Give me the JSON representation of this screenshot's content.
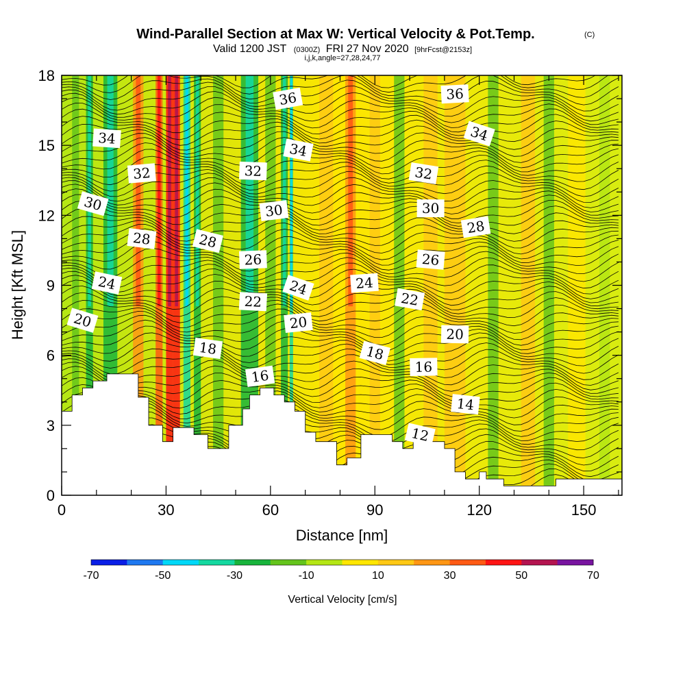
{
  "header": {
    "title": "Wind-Parallel Section at Max W: Vertical Velocity & Pot.Temp.",
    "copyright": "(C)",
    "valid_prefix": "Valid 1200 JST",
    "utc": "(0300Z)",
    "date": "FRI 27 Nov 2020",
    "forecast": "[9hrFcst@2153z]",
    "indices": "i,j,k,angle=27,28,24,77"
  },
  "chart_data": {
    "type": "heatmap",
    "xlabel": "Distance [nm]",
    "ylabel": "Height [Kft MSL]",
    "xlim": [
      0,
      161
    ],
    "ylim": [
      0,
      18
    ],
    "x_ticks": [
      0,
      30,
      60,
      90,
      120,
      150
    ],
    "y_ticks": [
      0,
      3,
      6,
      9,
      12,
      15,
      18
    ],
    "colorbar": {
      "label": "Vertical Velocity [cm/s]",
      "min": -70,
      "max": 70,
      "step": 10,
      "tick_values": [
        -70,
        -50,
        -30,
        -10,
        10,
        30,
        50,
        70
      ],
      "colors": [
        "#0a1ee6",
        "#1e78f0",
        "#00d8f8",
        "#14d8a0",
        "#18b43c",
        "#64c41c",
        "#b4e614",
        "#ffe600",
        "#ffc814",
        "#ff9614",
        "#ff5a14",
        "#ff1414",
        "#b41450",
        "#7814a0"
      ]
    },
    "contour_labels": [
      {
        "value": 36,
        "x": 65,
        "y": 17.0
      },
      {
        "value": 36,
        "x": 113,
        "y": 17.2
      },
      {
        "value": 34,
        "x": 13,
        "y": 15.3
      },
      {
        "value": 34,
        "x": 68,
        "y": 14.8
      },
      {
        "value": 34,
        "x": 120,
        "y": 15.5
      },
      {
        "value": 32,
        "x": 23,
        "y": 13.8
      },
      {
        "value": 32,
        "x": 55,
        "y": 13.9
      },
      {
        "value": 32,
        "x": 104,
        "y": 13.8
      },
      {
        "value": 30,
        "x": 9,
        "y": 12.5
      },
      {
        "value": 30,
        "x": 61,
        "y": 12.2
      },
      {
        "value": 30,
        "x": 106,
        "y": 12.3
      },
      {
        "value": 28,
        "x": 23,
        "y": 11.0
      },
      {
        "value": 28,
        "x": 42,
        "y": 10.9
      },
      {
        "value": 28,
        "x": 119,
        "y": 11.5
      },
      {
        "value": 26,
        "x": 55,
        "y": 10.1
      },
      {
        "value": 26,
        "x": 106,
        "y": 10.1
      },
      {
        "value": 24,
        "x": 13,
        "y": 9.1
      },
      {
        "value": 24,
        "x": 68,
        "y": 8.9
      },
      {
        "value": 24,
        "x": 87,
        "y": 9.1
      },
      {
        "value": 22,
        "x": 55,
        "y": 8.3
      },
      {
        "value": 22,
        "x": 100,
        "y": 8.4
      },
      {
        "value": 20,
        "x": 6,
        "y": 7.5
      },
      {
        "value": 20,
        "x": 68,
        "y": 7.4
      },
      {
        "value": 20,
        "x": 113,
        "y": 6.9
      },
      {
        "value": 18,
        "x": 42,
        "y": 6.3
      },
      {
        "value": 18,
        "x": 90,
        "y": 6.1
      },
      {
        "value": 16,
        "x": 57,
        "y": 5.1
      },
      {
        "value": 16,
        "x": 104,
        "y": 5.5
      },
      {
        "value": 14,
        "x": 116,
        "y": 3.9
      },
      {
        "value": 12,
        "x": 103,
        "y": 2.6
      }
    ],
    "terrain": [
      [
        0,
        3.6
      ],
      [
        3,
        3.6
      ],
      [
        3,
        4.3
      ],
      [
        6,
        4.3
      ],
      [
        6,
        4.6
      ],
      [
        9,
        4.6
      ],
      [
        9,
        4.9
      ],
      [
        13,
        4.9
      ],
      [
        13,
        5.2
      ],
      [
        22,
        5.2
      ],
      [
        22,
        4.2
      ],
      [
        25,
        4.2
      ],
      [
        25,
        3.0
      ],
      [
        29,
        3.0
      ],
      [
        29,
        2.3
      ],
      [
        32,
        2.3
      ],
      [
        32,
        2.9
      ],
      [
        38,
        2.9
      ],
      [
        38,
        2.6
      ],
      [
        42,
        2.6
      ],
      [
        42,
        2.0
      ],
      [
        48,
        2.0
      ],
      [
        48,
        3.0
      ],
      [
        52,
        3.0
      ],
      [
        52,
        3.7
      ],
      [
        54,
        3.7
      ],
      [
        54,
        4.3
      ],
      [
        57,
        4.3
      ],
      [
        57,
        4.6
      ],
      [
        61,
        4.6
      ],
      [
        61,
        4.3
      ],
      [
        64,
        4.3
      ],
      [
        64,
        4.0
      ],
      [
        67,
        4.0
      ],
      [
        67,
        3.6
      ],
      [
        70,
        3.6
      ],
      [
        70,
        2.7
      ],
      [
        73,
        2.7
      ],
      [
        73,
        2.3
      ],
      [
        79,
        2.3
      ],
      [
        79,
        1.3
      ],
      [
        82,
        1.3
      ],
      [
        82,
        1.6
      ],
      [
        86,
        1.6
      ],
      [
        86,
        2.6
      ],
      [
        95,
        2.6
      ],
      [
        95,
        2.3
      ],
      [
        98,
        2.3
      ],
      [
        98,
        2.0
      ],
      [
        101,
        2.0
      ],
      [
        101,
        2.3
      ],
      [
        110,
        2.3
      ],
      [
        110,
        2.0
      ],
      [
        113,
        2.0
      ],
      [
        113,
        1.0
      ],
      [
        116,
        1.0
      ],
      [
        116,
        0.7
      ],
      [
        120,
        0.7
      ],
      [
        120,
        1.0
      ],
      [
        122,
        1.0
      ],
      [
        122,
        0.7
      ],
      [
        127,
        0.7
      ],
      [
        127,
        0.4
      ],
      [
        142,
        0.4
      ],
      [
        142,
        0.7
      ],
      [
        161,
        0.7
      ]
    ]
  }
}
